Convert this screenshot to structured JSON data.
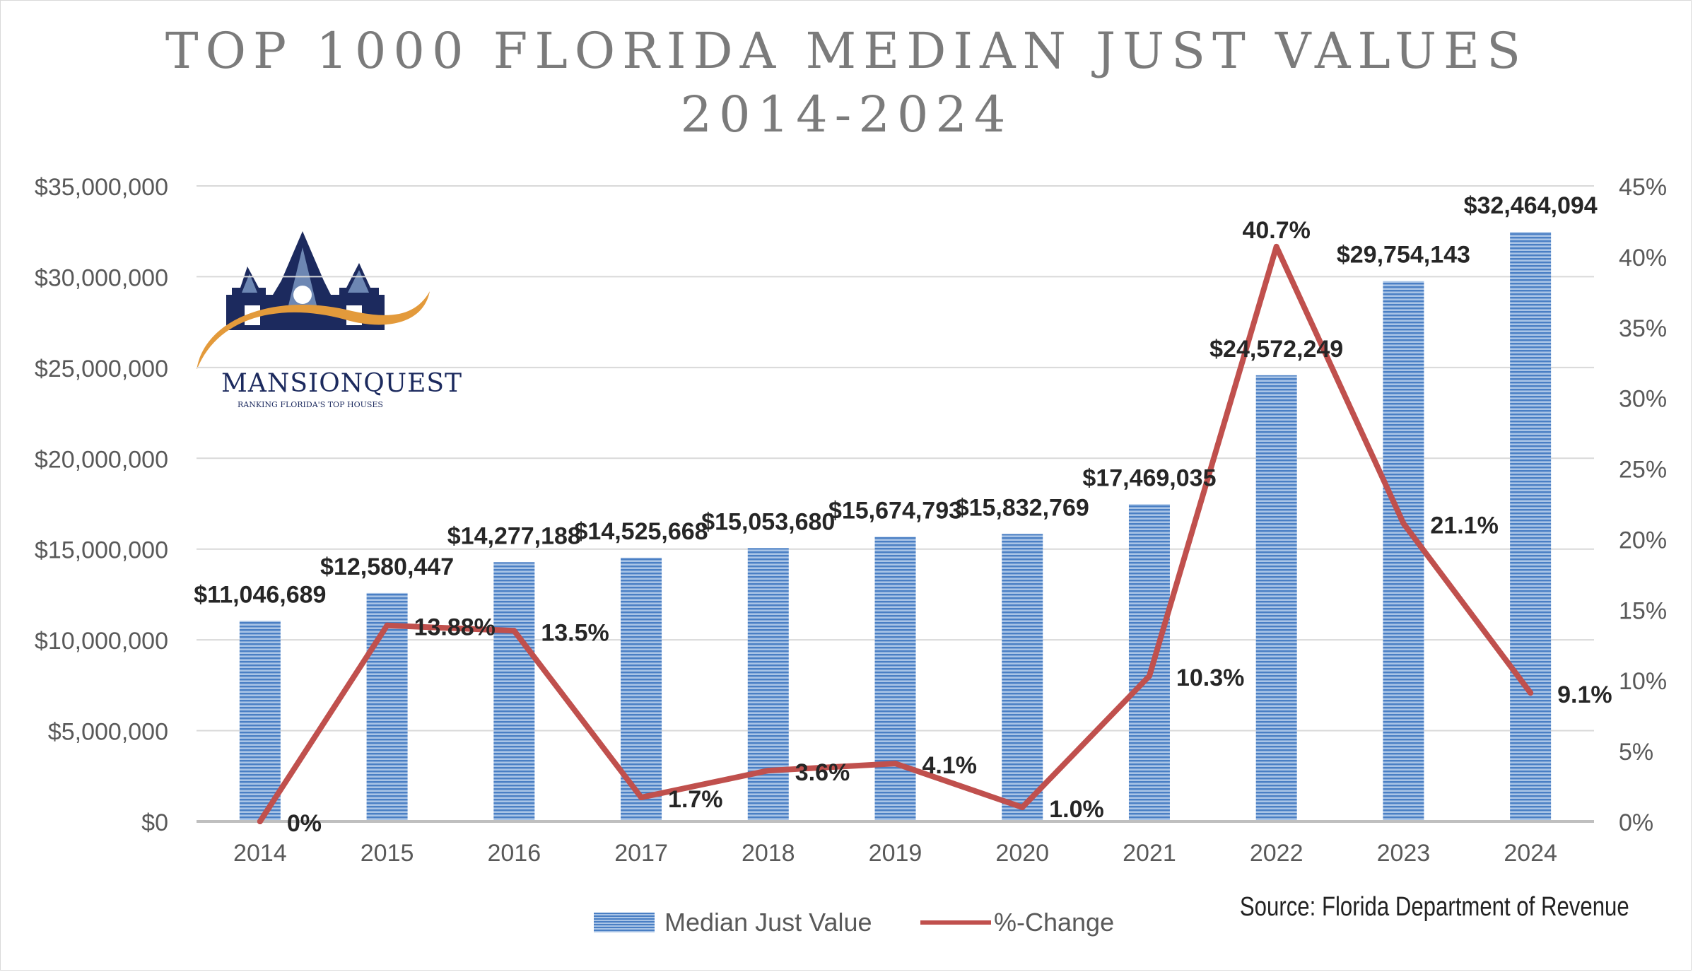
{
  "title_line1": "TOP 1000 FLORIDA MEDIAN JUST VALUES",
  "title_line2": "2014-2024",
  "source": "Source: Florida Department of Revenue",
  "logo": {
    "name": "MANSIONQUEST",
    "tagline": "RANKING FLORIDA'S TOP HOUSES"
  },
  "colors": {
    "bar": "#4a7fc4",
    "bar_light": "#a9c4e6",
    "line": "#c0504d",
    "axis_text": "#595959",
    "label_text": "#262626",
    "grid": "#d9d9d9"
  },
  "chart_data": {
    "type": "bar",
    "categories": [
      "2014",
      "2015",
      "2016",
      "2017",
      "2018",
      "2019",
      "2020",
      "2021",
      "2022",
      "2023",
      "2024"
    ],
    "series": [
      {
        "name": "Median Just Value",
        "type": "bar",
        "axis": "left",
        "values": [
          11046689,
          12580447,
          14277188,
          14525668,
          15053680,
          15674793,
          15832769,
          17469035,
          24572249,
          29754143,
          32464094
        ],
        "labels": [
          "$11,046,689",
          "$12,580,447",
          "$14,277,188",
          "$14,525,668",
          "$15,053,680",
          "$15,674,793",
          "$15,832,769",
          "$17,469,035",
          "$24,572,249",
          "$29,754,143",
          "$32,464,094"
        ]
      },
      {
        "name": "%-Change",
        "type": "line",
        "axis": "right",
        "values": [
          0,
          13.88,
          13.5,
          1.7,
          3.6,
          4.1,
          1.0,
          10.3,
          40.7,
          21.1,
          9.1
        ],
        "labels": [
          "0%",
          "13.88%",
          "13.5%",
          "1.7%",
          "3.6%",
          "4.1%",
          "1.0%",
          "10.3%",
          "40.7%",
          "21.1%",
          "9.1%"
        ]
      }
    ],
    "y_left": {
      "min": 0,
      "max": 35000000,
      "ticks": [
        "$0",
        "$5,000,000",
        "$10,000,000",
        "$15,000,000",
        "$20,000,000",
        "$25,000,000",
        "$30,000,000",
        "$35,000,000"
      ]
    },
    "y_right": {
      "min": 0,
      "max": 45,
      "ticks": [
        "0%",
        "5%",
        "10%",
        "15%",
        "20%",
        "25%",
        "30%",
        "35%",
        "40%",
        "45%"
      ]
    },
    "grid": true,
    "legend_position": "bottom"
  }
}
